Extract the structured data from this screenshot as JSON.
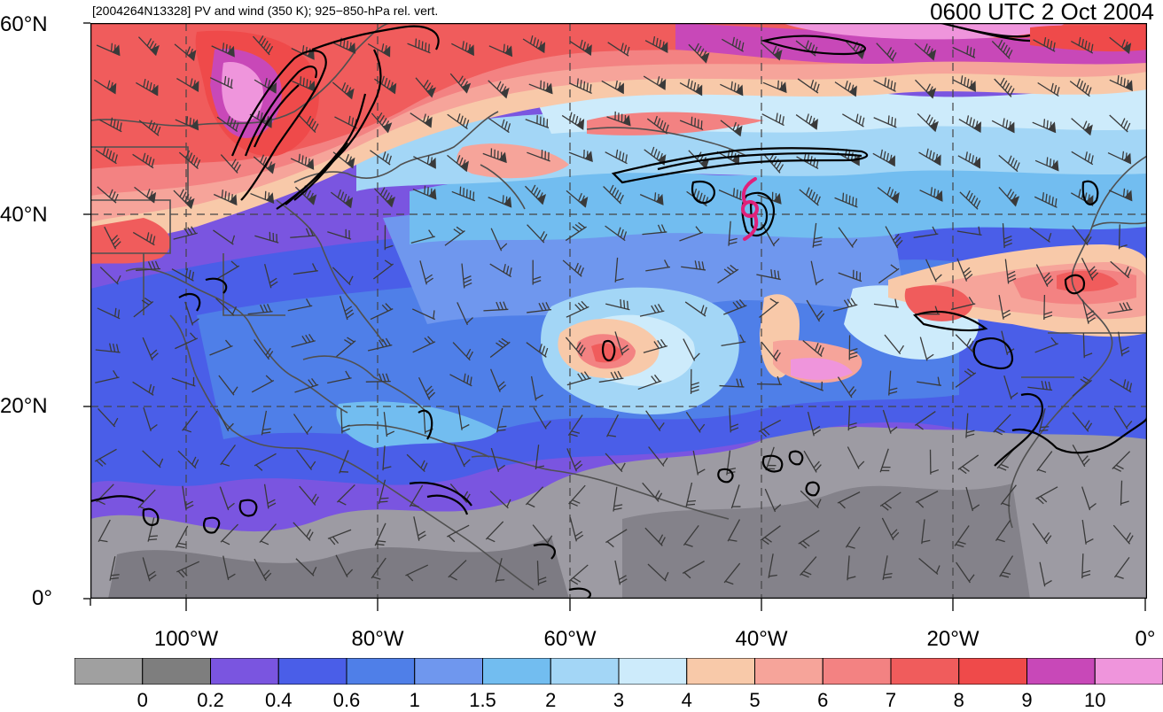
{
  "header": {
    "storm_info": "[2004264N13328] PV and wind (350 K); 925−850-hPa rel. vert.",
    "valid_time": "0600 UTC 2 Oct 2004"
  },
  "map": {
    "lat_labels": [
      "60°N",
      "40°N",
      "20°N",
      "0°"
    ],
    "lon_labels": [
      "100°W",
      "80°W",
      "60°W",
      "40°W",
      "20°W",
      "0°"
    ],
    "colors": {
      "pv_gray_light": "#a0a0a0",
      "pv_gray_dark": "#7e7e7e",
      "pv_purple": "#7a55e0",
      "pv_blue_dark": "#4a5ee8",
      "pv_blue": "#4f7fe8",
      "pv_blue_mid": "#6f97ee",
      "pv_blue_light": "#72bdf0",
      "pv_cyan_pale": "#a3d6f6",
      "pv_ice": "#cdebfb",
      "pv_peach": "#f8c9a9",
      "pv_salmon": "#f6a49a",
      "pv_pink": "#f38282",
      "pv_red": "#f05c5c",
      "pv_red_dark": "#ef4a4a",
      "pv_magenta": "#c848b8",
      "pv_pink_light": "#ef95dc",
      "storm_symbol": "#e0207a",
      "coast": "#505050",
      "contour": "#000000"
    }
  },
  "colorbar": {
    "labels": [
      "0",
      "0.2",
      "0.4",
      "0.6",
      "1",
      "1.5",
      "2",
      "3",
      "4",
      "5",
      "6",
      "7",
      "8",
      "9",
      "10"
    ],
    "colors": [
      "#a0a0a0",
      "#7e7e7e",
      "#7a55e0",
      "#4a5ee8",
      "#4f7fe8",
      "#6f97ee",
      "#72bdf0",
      "#a3d6f6",
      "#cdebfb",
      "#f8c9a9",
      "#f6a49a",
      "#f38282",
      "#f05c5c",
      "#ef4a4a",
      "#c848b8",
      "#ef95dc"
    ]
  }
}
